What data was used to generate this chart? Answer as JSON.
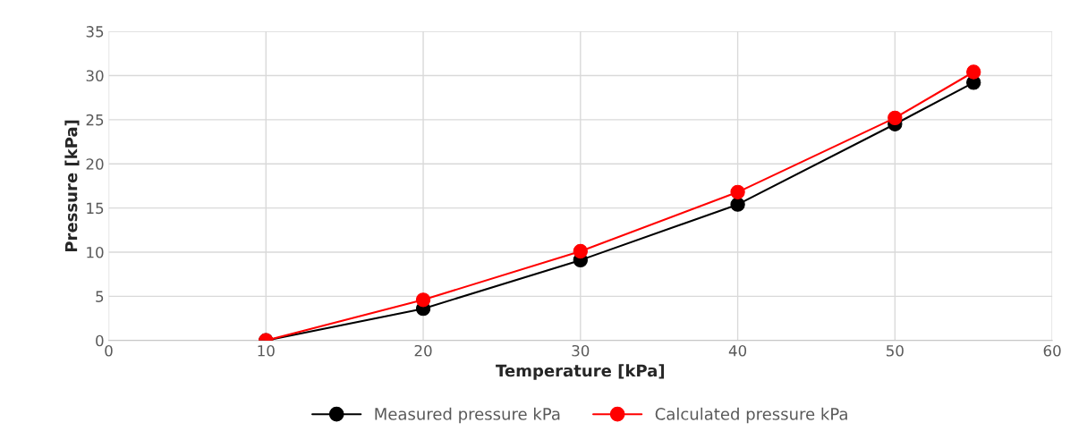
{
  "chart_data": {
    "type": "line",
    "xlabel": "Temperature [kPa]",
    "ylabel": "Pressure [kPa]",
    "xlim": [
      0,
      60
    ],
    "xticks": [
      0,
      10,
      20,
      30,
      40,
      50,
      60
    ],
    "ylim": [
      0,
      35
    ],
    "yticks": [
      0,
      5,
      10,
      15,
      20,
      25,
      30,
      35
    ],
    "grid": true,
    "legend": "bottom",
    "marker": "circle",
    "line_style": "solid",
    "series": [
      {
        "name": "Measured pressure kPa",
        "color": "#000000",
        "x": [
          10,
          20,
          30,
          40,
          50,
          55
        ],
        "values": [
          0,
          3.6,
          9.1,
          15.4,
          24.5,
          29.2
        ]
      },
      {
        "name": "Calculated pressure kPa",
        "color": "#ff0000",
        "x": [
          10,
          20,
          30,
          40,
          50,
          55
        ],
        "values": [
          0,
          4.6,
          10.1,
          16.8,
          25.2,
          30.4
        ]
      }
    ]
  }
}
